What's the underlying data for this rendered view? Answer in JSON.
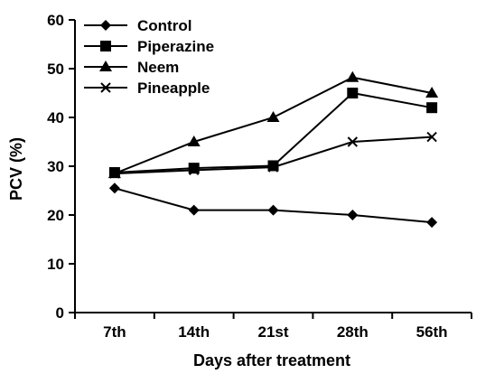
{
  "chart_data": {
    "type": "line",
    "categories": [
      "7th",
      "14th",
      "21st",
      "28th",
      "56th"
    ],
    "xlabel": "Days after treatment",
    "ylabel": "PCV (%)",
    "ylim": [
      0,
      60
    ],
    "yticks": [
      0,
      10,
      20,
      30,
      40,
      50,
      60
    ],
    "grid": false,
    "legend_position": "top-left",
    "series": [
      {
        "name": "Control",
        "marker": "diamond",
        "values": [
          25.5,
          21,
          21,
          20,
          18.5
        ]
      },
      {
        "name": "Piperazine",
        "marker": "square",
        "values": [
          28.7,
          29.6,
          30.1,
          45,
          42
        ]
      },
      {
        "name": "Neem",
        "marker": "triangle",
        "values": [
          28.5,
          35,
          40,
          48.2,
          45
        ]
      },
      {
        "name": "Pineapple",
        "marker": "x",
        "values": [
          28.5,
          29.2,
          29.8,
          35,
          36
        ]
      }
    ]
  }
}
